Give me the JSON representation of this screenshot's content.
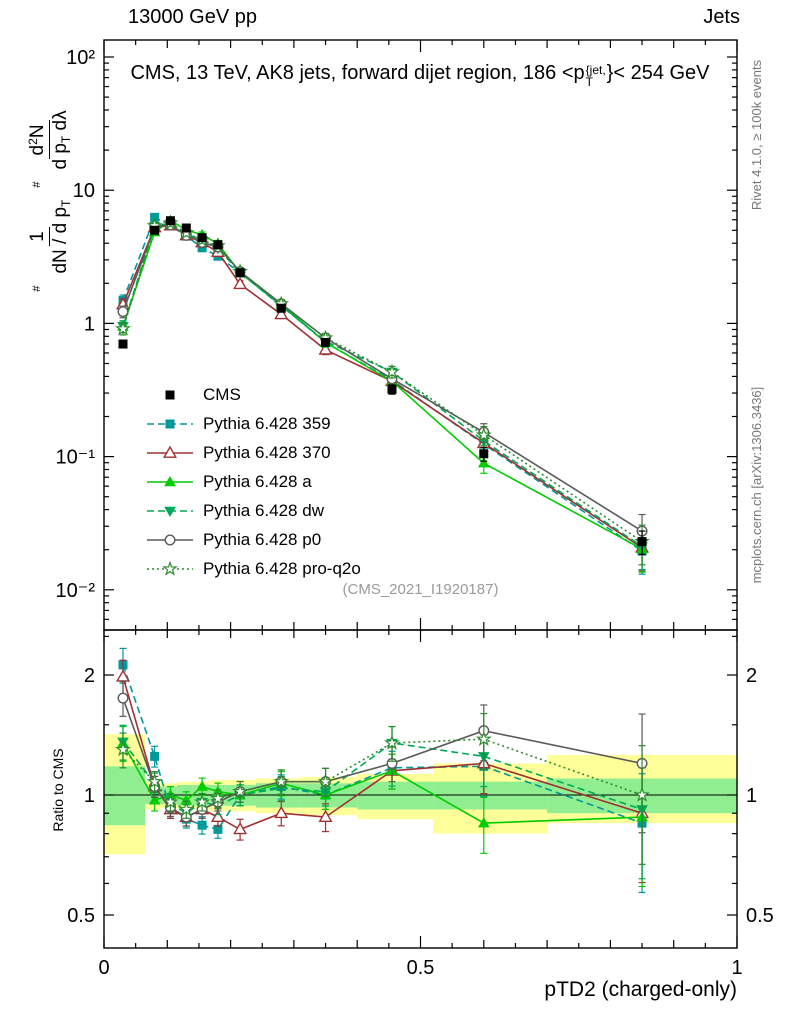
{
  "header": {
    "left": "13000 GeV pp",
    "right": "Jets"
  },
  "sidebar_right": {
    "rivet_note": "Rivet 4.1.0, ≥ 100k events",
    "mcplots_note": "mcplots.cern.ch [arXiv:1306.3436]"
  },
  "plot_title": {
    "pre": "CMS, 13 TeV, AK8 jets, forward dijet region, 186 <p",
    "sup": "{jet,",
    "sub": "T",
    "post": "}< 254 GeV"
  },
  "ylabel": {
    "hash1": "#",
    "frac1_num": "1",
    "frac1_den_pre": "dN / d p",
    "frac1_den_sub": "T",
    "hash2": "#",
    "frac2_num_pre": "d",
    "frac2_num_sup": "2",
    "frac2_num_post": "N",
    "frac2_den_pre": "d p",
    "frac2_den_sub": "T",
    "frac2_den_post": " dλ"
  },
  "ratio_ylabel": "Ratio to CMS",
  "xlabel": "pTD2 (charged-only)",
  "watermark": "(CMS_2021_I1920187)",
  "chart_data": {
    "type": "line",
    "title": "CMS, 13 TeV, AK8 jets, forward dijet region, 186 < pT^jet < 254 GeV",
    "xlabel": "pTD2 (charged-only)",
    "ylabel": "# 1/(dN/dpT) # d²N/(dpT dλ)",
    "ratio_ylabel": "Ratio to CMS",
    "legend_position": "middle-left",
    "grid": false,
    "x_axis": {
      "range": [
        0,
        1
      ],
      "minor_step": 0.05,
      "ticks": [
        {
          "v": 0,
          "label": "0"
        },
        {
          "v": 0.5,
          "label": "0.5"
        },
        {
          "v": 1,
          "label": "1"
        }
      ]
    },
    "y_axis_main": {
      "scale": "log",
      "range": [
        0.005,
        134
      ],
      "ticks": [
        {
          "v": 100,
          "label": "10²"
        },
        {
          "v": 10,
          "label": "10"
        },
        {
          "v": 1,
          "label": "1"
        },
        {
          "v": 0.1,
          "label": "10⁻¹"
        },
        {
          "v": 0.01,
          "label": "10⁻²"
        }
      ]
    },
    "y_axis_ratio": {
      "scale": "log",
      "range": [
        0.41,
        2.6
      ],
      "ticks": [
        {
          "v": 2,
          "label": "2"
        },
        {
          "v": 1,
          "label": "1"
        },
        {
          "v": 0.5,
          "label": "0.5"
        }
      ],
      "minor": [
        0.6,
        0.7,
        0.8,
        0.9,
        1.5,
        2.5
      ]
    },
    "x": [
      0.03,
      0.08,
      0.105,
      0.13,
      0.155,
      0.18,
      0.215,
      0.28,
      0.35,
      0.455,
      0.6,
      0.85
    ],
    "reference": {
      "name": "CMS",
      "color": "#000000",
      "marker": "square-filled",
      "values": [
        0.7,
        5.0,
        5.9,
        5.2,
        4.4,
        3.9,
        2.4,
        1.3,
        0.72,
        0.32,
        0.105,
        0.023
      ],
      "err_frac": [
        0.05,
        0.04,
        0.04,
        0.04,
        0.04,
        0.04,
        0.05,
        0.05,
        0.06,
        0.08,
        0.12,
        0.2
      ]
    },
    "series": [
      {
        "name": "Pythia 6.428 359",
        "color": "#009999",
        "dash": "7,4",
        "marker": "square-filled",
        "ratio": [
          2.12,
          1.25,
          0.92,
          0.87,
          0.84,
          0.82,
          1.0,
          1.05,
          1.0,
          1.17,
          1.18,
          0.85
        ]
      },
      {
        "name": "Pythia 6.428 370",
        "color": "#A03033",
        "dash": "",
        "marker": "triangle-up-open",
        "ratio": [
          1.98,
          1.05,
          0.92,
          0.88,
          0.92,
          0.88,
          0.82,
          0.9,
          0.88,
          1.15,
          1.2,
          0.9
        ]
      },
      {
        "name": "Pythia 6.428 a",
        "color": "#00CC00",
        "dash": "",
        "marker": "triangle-up-filled",
        "ratio": [
          1.35,
          0.97,
          1.0,
          0.97,
          1.05,
          1.02,
          1.0,
          1.07,
          1.0,
          1.15,
          0.85,
          0.88
        ]
      },
      {
        "name": "Pythia 6.428 dw",
        "color": "#00A857",
        "dash": "7,4",
        "marker": "triangle-down-filled",
        "ratio": [
          1.36,
          1.07,
          0.95,
          0.9,
          0.96,
          0.94,
          1.0,
          1.04,
          1.02,
          1.35,
          1.25,
          0.92
        ]
      },
      {
        "name": "Pythia 6.428 p0",
        "color": "#5A5A5A",
        "dash": "",
        "marker": "circle-open",
        "ratio": [
          1.75,
          1.05,
          0.93,
          0.88,
          0.92,
          0.96,
          1.02,
          1.08,
          1.08,
          1.2,
          1.45,
          1.2
        ]
      },
      {
        "name": "Pythia 6.428 pro-q2o",
        "color": "#2E8B2E",
        "dash": "2,3",
        "marker": "star-open",
        "ratio": [
          1.3,
          1.08,
          0.96,
          0.92,
          0.96,
          0.98,
          1.02,
          1.08,
          1.08,
          1.35,
          1.38,
          1.0
        ]
      }
    ],
    "model_err_frac": [
      0.1,
      0.06,
      0.05,
      0.05,
      0.05,
      0.05,
      0.06,
      0.07,
      0.08,
      0.1,
      0.16,
      0.33
    ],
    "band_colors": {
      "green": "#90EE90",
      "yellow": "#FFFF99"
    },
    "ratio_bands": [
      {
        "x0": 0.0,
        "x1": 0.065,
        "green": [
          0.84,
          1.18
        ],
        "yellow": [
          0.71,
          1.42
        ]
      },
      {
        "x0": 0.065,
        "x1": 0.09,
        "green": [
          0.95,
          1.05
        ],
        "yellow": [
          0.92,
          1.08
        ]
      },
      {
        "x0": 0.09,
        "x1": 0.115,
        "green": [
          0.95,
          1.05
        ],
        "yellow": [
          0.93,
          1.07
        ]
      },
      {
        "x0": 0.115,
        "x1": 0.14,
        "green": [
          0.94,
          1.06
        ],
        "yellow": [
          0.92,
          1.08
        ]
      },
      {
        "x0": 0.14,
        "x1": 0.165,
        "green": [
          0.94,
          1.06
        ],
        "yellow": [
          0.92,
          1.08
        ]
      },
      {
        "x0": 0.165,
        "x1": 0.19,
        "green": [
          0.94,
          1.06
        ],
        "yellow": [
          0.91,
          1.09
        ]
      },
      {
        "x0": 0.19,
        "x1": 0.24,
        "green": [
          0.94,
          1.06
        ],
        "yellow": [
          0.91,
          1.09
        ]
      },
      {
        "x0": 0.24,
        "x1": 0.31,
        "green": [
          0.93,
          1.07
        ],
        "yellow": [
          0.9,
          1.1
        ]
      },
      {
        "x0": 0.31,
        "x1": 0.4,
        "green": [
          0.93,
          1.07
        ],
        "yellow": [
          0.89,
          1.11
        ]
      },
      {
        "x0": 0.4,
        "x1": 0.52,
        "green": [
          0.92,
          1.08
        ],
        "yellow": [
          0.87,
          1.13
        ]
      },
      {
        "x0": 0.52,
        "x1": 0.7,
        "green": [
          0.92,
          1.08
        ],
        "yellow": [
          0.8,
          1.2
        ]
      },
      {
        "x0": 0.7,
        "x1": 1.0,
        "green": [
          0.9,
          1.1
        ],
        "yellow": [
          0.85,
          1.26
        ]
      }
    ]
  }
}
